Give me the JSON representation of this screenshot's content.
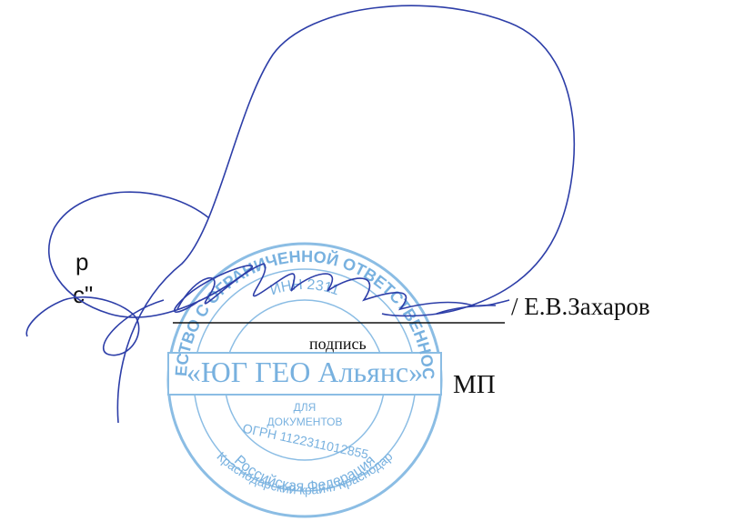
{
  "document": {
    "left_fragments": [
      "р",
      "с\""
    ],
    "signer": "/ Е.В.Захаров",
    "signature_caption": "подпись",
    "seal_mark": "МП",
    "stamp": {
      "outer_top": "ОБЩЕСТВО С ОГРАНИЧЕННОЙ ОТВЕТСТВЕННОСТЬЮ",
      "inner_top": "ИНН 2311",
      "center": "«ЮГ ГЕО Альянс»",
      "purpose_line1": "ДЛЯ",
      "purpose_line2": "ДОКУМЕНТОВ",
      "ogrn": "ОГРН 1122311012855",
      "inner_bottom": "Российская Федерация",
      "outer_bottom": "Краснодарский край г. Краснодар"
    }
  }
}
